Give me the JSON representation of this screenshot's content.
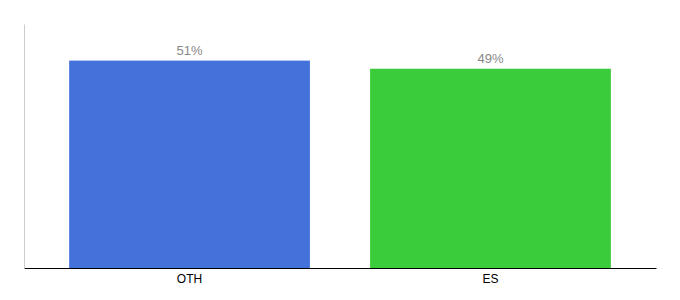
{
  "chart_data": {
    "type": "bar",
    "categories": [
      "OTH",
      "ES"
    ],
    "values": [
      51,
      49
    ],
    "value_labels": [
      "51%",
      "49%"
    ],
    "colors": [
      "#4472db",
      "#3acc3a"
    ],
    "ylim": [
      0,
      60
    ],
    "data_labels": true,
    "tick_labels": "x",
    "grid": false
  }
}
